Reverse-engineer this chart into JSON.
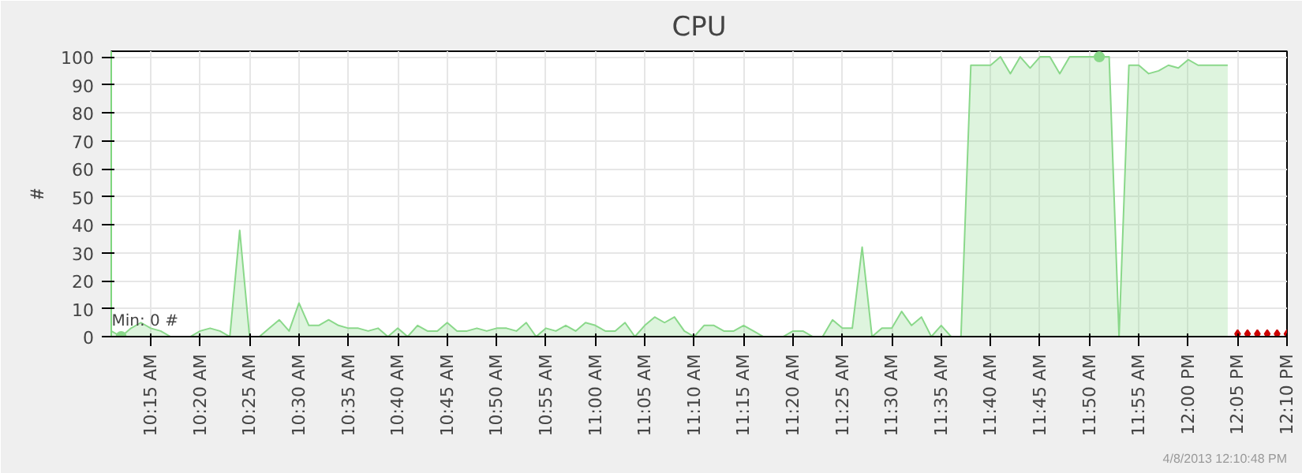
{
  "chart_data": {
    "type": "area",
    "title": "CPU",
    "ylabel": "#",
    "xlim": [
      "2013-04-08T10:11",
      "2013-04-08T12:10"
    ],
    "ylim": [
      0,
      102
    ],
    "yticks": [
      0,
      10,
      20,
      30,
      40,
      50,
      60,
      70,
      80,
      90,
      100
    ],
    "xticks": [
      {
        "value": "2013-04-08T10:15",
        "label": "10:15 AM"
      },
      {
        "value": "2013-04-08T10:20",
        "label": "10:20 AM"
      },
      {
        "value": "2013-04-08T10:25",
        "label": "10:25 AM"
      },
      {
        "value": "2013-04-08T10:30",
        "label": "10:30 AM"
      },
      {
        "value": "2013-04-08T10:35",
        "label": "10:35 AM"
      },
      {
        "value": "2013-04-08T10:40",
        "label": "10:40 AM"
      },
      {
        "value": "2013-04-08T10:45",
        "label": "10:45 AM"
      },
      {
        "value": "2013-04-08T10:50",
        "label": "10:50 AM"
      },
      {
        "value": "2013-04-08T10:55",
        "label": "10:55 AM"
      },
      {
        "value": "2013-04-08T11:00",
        "label": "11:00 AM"
      },
      {
        "value": "2013-04-08T11:05",
        "label": "11:05 AM"
      },
      {
        "value": "2013-04-08T11:10",
        "label": "11:10 AM"
      },
      {
        "value": "2013-04-08T11:15",
        "label": "11:15 AM"
      },
      {
        "value": "2013-04-08T11:20",
        "label": "11:20 AM"
      },
      {
        "value": "2013-04-08T11:25",
        "label": "11:25 AM"
      },
      {
        "value": "2013-04-08T11:30",
        "label": "11:30 AM"
      },
      {
        "value": "2013-04-08T11:35",
        "label": "11:35 AM"
      },
      {
        "value": "2013-04-08T11:40",
        "label": "11:40 AM"
      },
      {
        "value": "2013-04-08T11:45",
        "label": "11:45 AM"
      },
      {
        "value": "2013-04-08T11:50",
        "label": "11:50 AM"
      },
      {
        "value": "2013-04-08T11:55",
        "label": "11:55 AM"
      },
      {
        "value": "2013-04-08T12:00",
        "label": "12:00 PM"
      },
      {
        "value": "2013-04-08T12:05",
        "label": "12:05 PM"
      },
      {
        "value": "2013-04-08T12:10",
        "label": "12:10 PM"
      }
    ],
    "grid": true,
    "annotations": [
      {
        "text": "Min: 0 #",
        "x": "2013-04-08T10:12",
        "y": 0
      },
      "4/8/2013 12:10:48 PM"
    ],
    "series": [
      {
        "color": "#8ad88a",
        "x": [
          "2013-04-08T10:11",
          "2013-04-08T10:12",
          "2013-04-08T10:13",
          "2013-04-08T10:14",
          "2013-04-08T10:15",
          "2013-04-08T10:16",
          "2013-04-08T10:17",
          "2013-04-08T10:18",
          "2013-04-08T10:19",
          "2013-04-08T10:20",
          "2013-04-08T10:21",
          "2013-04-08T10:22",
          "2013-04-08T10:23",
          "2013-04-08T10:24",
          "2013-04-08T10:25",
          "2013-04-08T10:26",
          "2013-04-08T10:27",
          "2013-04-08T10:28",
          "2013-04-08T10:29",
          "2013-04-08T10:30",
          "2013-04-08T10:31",
          "2013-04-08T10:32",
          "2013-04-08T10:33",
          "2013-04-08T10:34",
          "2013-04-08T10:35",
          "2013-04-08T10:36",
          "2013-04-08T10:37",
          "2013-04-08T10:38",
          "2013-04-08T10:39",
          "2013-04-08T10:40",
          "2013-04-08T10:41",
          "2013-04-08T10:42",
          "2013-04-08T10:43",
          "2013-04-08T10:44",
          "2013-04-08T10:45",
          "2013-04-08T10:46",
          "2013-04-08T10:47",
          "2013-04-08T10:48",
          "2013-04-08T10:49",
          "2013-04-08T10:50",
          "2013-04-08T10:51",
          "2013-04-08T10:52",
          "2013-04-08T10:53",
          "2013-04-08T10:54",
          "2013-04-08T10:55",
          "2013-04-08T10:56",
          "2013-04-08T10:57",
          "2013-04-08T10:58",
          "2013-04-08T10:59",
          "2013-04-08T11:00",
          "2013-04-08T11:01",
          "2013-04-08T11:02",
          "2013-04-08T11:03",
          "2013-04-08T11:04",
          "2013-04-08T11:05",
          "2013-04-08T11:06",
          "2013-04-08T11:07",
          "2013-04-08T11:08",
          "2013-04-08T11:09",
          "2013-04-08T11:10",
          "2013-04-08T11:11",
          "2013-04-08T11:12",
          "2013-04-08T11:13",
          "2013-04-08T11:14",
          "2013-04-08T11:15",
          "2013-04-08T11:16",
          "2013-04-08T11:17",
          "2013-04-08T11:18",
          "2013-04-08T11:19",
          "2013-04-08T11:20",
          "2013-04-08T11:21",
          "2013-04-08T11:22",
          "2013-04-08T11:23",
          "2013-04-08T11:24",
          "2013-04-08T11:25",
          "2013-04-08T11:26",
          "2013-04-08T11:27",
          "2013-04-08T11:28",
          "2013-04-08T11:29",
          "2013-04-08T11:30",
          "2013-04-08T11:31",
          "2013-04-08T11:32",
          "2013-04-08T11:33",
          "2013-04-08T11:34",
          "2013-04-08T11:35",
          "2013-04-08T11:36",
          "2013-04-08T11:37",
          "2013-04-08T11:38",
          "2013-04-08T11:39",
          "2013-04-08T11:40",
          "2013-04-08T11:41",
          "2013-04-08T11:42",
          "2013-04-08T11:43",
          "2013-04-08T11:44",
          "2013-04-08T11:45",
          "2013-04-08T11:46",
          "2013-04-08T11:47",
          "2013-04-08T11:48",
          "2013-04-08T11:49",
          "2013-04-08T11:50",
          "2013-04-08T11:51",
          "2013-04-08T11:52",
          "2013-04-08T11:53",
          "2013-04-08T11:54",
          "2013-04-08T11:55",
          "2013-04-08T11:56",
          "2013-04-08T11:57",
          "2013-04-08T11:58",
          "2013-04-08T11:59",
          "2013-04-08T12:00",
          "2013-04-08T12:01",
          "2013-04-08T12:02",
          "2013-04-08T12:03",
          "2013-04-08T12:04"
        ],
        "values": [
          2,
          0,
          3,
          5,
          3,
          2,
          0,
          0,
          0,
          2,
          3,
          2,
          0,
          38,
          0,
          0,
          3,
          6,
          2,
          12,
          4,
          4,
          6,
          4,
          3,
          3,
          2,
          3,
          0,
          3,
          0,
          4,
          2,
          2,
          5,
          2,
          2,
          3,
          2,
          3,
          3,
          2,
          5,
          0,
          3,
          2,
          4,
          2,
          5,
          4,
          2,
          2,
          5,
          0,
          4,
          7,
          5,
          7,
          2,
          0,
          4,
          4,
          2,
          2,
          4,
          2,
          0,
          0,
          0,
          2,
          2,
          0,
          0,
          6,
          3,
          3,
          32,
          0,
          3,
          3,
          9,
          4,
          7,
          0,
          4,
          0,
          0,
          97,
          97,
          97,
          100,
          94,
          100,
          96,
          100,
          100,
          94,
          100,
          100,
          100,
          100,
          100,
          0,
          97,
          97,
          94,
          95,
          97,
          96,
          99,
          97,
          97,
          97,
          97
        ]
      },
      {
        "type": "scatter",
        "color": "#cc0000",
        "marker": "diamond",
        "x": [
          "2013-04-08T12:05",
          "2013-04-08T12:06",
          "2013-04-08T12:07",
          "2013-04-08T12:08",
          "2013-04-08T12:09",
          "2013-04-08T12:10"
        ],
        "values": [
          1,
          1,
          1,
          1,
          1,
          1
        ]
      },
      {
        "type": "scatter",
        "color": "#8ad88a",
        "marker": "circle",
        "x": [
          "2013-04-08T10:12",
          "2013-04-08T11:51"
        ],
        "values": [
          0,
          100
        ]
      }
    ]
  }
}
